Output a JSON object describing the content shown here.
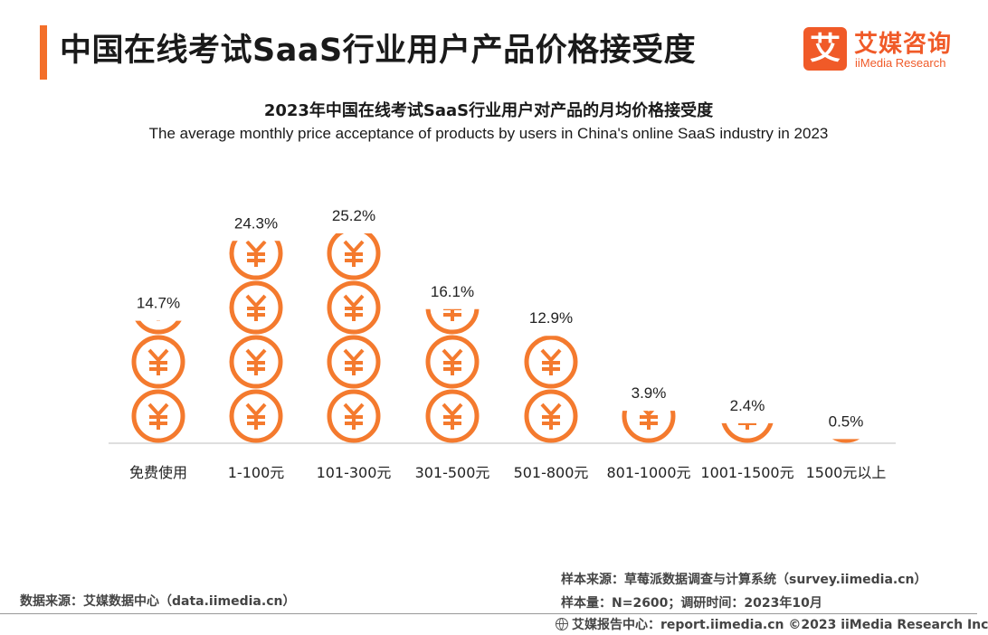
{
  "header": {
    "title": "中国在线考试SaaS行业用户产品价格接受度",
    "logo_mark": "艾",
    "logo_cn": "艾媒咨询",
    "logo_en": "iiMedia Research"
  },
  "colors": {
    "accent": "#f36f2a",
    "coin": "#f47a2e"
  },
  "icons": {
    "coin": "yuan-coin-icon",
    "footer": "globe-icon"
  },
  "chart_data": {
    "type": "bar",
    "title": "2023年中国在线考试SaaS行业用户对产品的月均价格接受度",
    "subtitle": "The average monthly price acceptance of products by users in China's online SaaS industry in 2023",
    "categories": [
      "免费使用",
      "1-100元",
      "101-300元",
      "301-500元",
      "501-800元",
      "801-1000元",
      "1001-1500元",
      "1500元以上"
    ],
    "values": [
      14.7,
      24.3,
      25.2,
      16.1,
      12.9,
      3.9,
      2.4,
      0.5
    ],
    "value_labels": [
      "14.7%",
      "24.3%",
      "25.2%",
      "16.1%",
      "12.9%",
      "3.9%",
      "2.4%",
      "0.5%"
    ],
    "unit": "%",
    "ylim": [
      0,
      25.2
    ],
    "grid": false,
    "legend": "none"
  },
  "footer": {
    "data_source": "数据来源：艾媒数据中心（data.iimedia.cn）",
    "sample_source": "样本来源：草莓派数据调查与计算系统（survey.iimedia.cn）",
    "sample_size": "样本量：N=2600；调研时间：2023年10月",
    "report": "艾媒报告中心：report.iimedia.cn  ©2023  iiMedia Research  Inc"
  }
}
